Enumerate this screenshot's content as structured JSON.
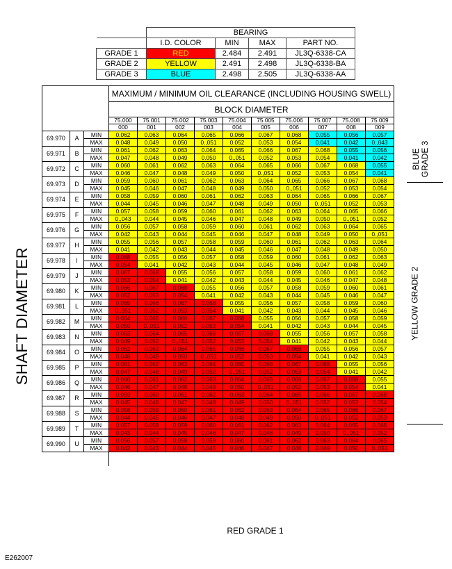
{
  "bearing": {
    "title": "BEARING",
    "headers": [
      "I.D. COLOR",
      "MIN",
      "MAX",
      "PART NO."
    ],
    "rows": [
      {
        "grade": "GRADE 1",
        "color_label": "RED",
        "color": "#ff0000",
        "label_color": "#ffe800",
        "min": "2.484",
        "max": "2.491",
        "part": "JL3Q-6338-CA"
      },
      {
        "grade": "GRADE 2",
        "color_label": "YELLOW",
        "color": "#ffff00",
        "label_color": "#000000",
        "min": "2.491",
        "max": "2.498",
        "part": "JL3Q-6338-BA"
      },
      {
        "grade": "GRADE 3",
        "color_label": "BLUE",
        "color": "#00ffff",
        "label_color": "#000000",
        "min": "2.498",
        "max": "2.505",
        "part": "JL3Q-6338-AA"
      }
    ]
  },
  "clearance": {
    "title": "MAXIMUM / MINIMUM OIL CLEARANCE (INCLUDING HOUSING SWELL)",
    "block_label": "BLOCK DIAMETER",
    "block_diameters": [
      "75.000",
      "75.001",
      "75.002",
      "75.003",
      "75.004",
      "75.005",
      "75.006",
      "75.007",
      "75.008",
      "75.009"
    ],
    "block_codes": [
      "000",
      "001",
      "002",
      "003",
      "004",
      "005",
      "006",
      "007",
      "008",
      "009"
    ],
    "shaft_label": "SHAFT DIAMETER",
    "min_label": "MIN",
    "max_label": "MAX",
    "grade3_label": [
      "BLUE",
      "GRADE 3"
    ],
    "grade2_label": "YELLOW GRADE 2",
    "grade1_label": "RED GRADE 1",
    "shaft_rows": [
      {
        "diameter": "69.970",
        "letter": "A",
        "min": [
          "0.062",
          "0.063",
          "0.064",
          "0.065",
          "0.066",
          "0.067",
          "0.068",
          "0.055",
          "0.056",
          "0.057"
        ],
        "max": [
          "0.048",
          "0.049",
          "0.050",
          "0.,051",
          "0.052",
          "0.053",
          "0.054",
          "0.041",
          "0.042",
          "0.,043"
        ]
      },
      {
        "diameter": "69.971",
        "letter": "B",
        "min": [
          "0.061",
          "0.062",
          "0.063",
          "0.064",
          "0.065",
          "0.066",
          "0.067",
          "0.068",
          "0.055",
          "0.056"
        ],
        "max": [
          "0.047",
          "0.048",
          "0.049",
          "0.050",
          "0.,051",
          "0.052",
          "0.053",
          "0.054",
          "0.041",
          "0.042"
        ]
      },
      {
        "diameter": "69.972",
        "letter": "C",
        "min": [
          "0.060",
          "0.061",
          "0.062",
          "0.063",
          "0.064",
          "0.065",
          "0.066",
          "0.067",
          "0.068",
          "0.055"
        ],
        "max": [
          "0.046",
          "0.047",
          "0.048",
          "0.049",
          "0.050",
          "0.,051",
          "0.052",
          "0.053",
          "0.054",
          "0.041"
        ]
      },
      {
        "diameter": "69.973",
        "letter": "D",
        "min": [
          "0.059",
          "0.060",
          "0.061",
          "0.062",
          "0.063",
          "0.064",
          "0.065",
          "0.066",
          "0.067",
          "0.068"
        ],
        "max": [
          "0.045",
          "0.046",
          "0.047",
          "0.048",
          "0.049",
          "0.050",
          "0.,051",
          "0.052",
          "0.053",
          "0.054"
        ]
      },
      {
        "diameter": "69.974",
        "letter": "E",
        "min": [
          "0.058",
          "0.059",
          "0.060",
          "0.061",
          "0.062",
          "0.063",
          "0.064",
          "0.065",
          "0.066",
          "0.067"
        ],
        "max": [
          "0.044",
          "0.045",
          "0.046",
          "0.047",
          "0.048",
          "0.049",
          "0.050",
          "0.,051",
          "0.052",
          "0.053"
        ]
      },
      {
        "diameter": "69.975",
        "letter": "F",
        "min": [
          "0.057",
          "0.058",
          "0.059",
          "0.060",
          "0.061",
          "0.062",
          "0.063",
          "0.064",
          "0.065",
          "0.066"
        ],
        "max": [
          "0.,043",
          "0.044",
          "0.045",
          "0.046",
          "0.047",
          "0.048",
          "0.049",
          "0.050",
          "0.,051",
          "0.052"
        ]
      },
      {
        "diameter": "69.976",
        "letter": "G",
        "min": [
          "0.056",
          "0.057",
          "0.058",
          "0.059",
          "0.060",
          "0.061",
          "0.062",
          "0.063",
          "0.064",
          "0.065"
        ],
        "max": [
          "0.042",
          "0.043",
          "0.044",
          "0.045",
          "0.046",
          "0.047",
          "0.048",
          "0.049",
          "0.050",
          "0.,051"
        ]
      },
      {
        "diameter": "69.977",
        "letter": "H",
        "min": [
          "0.055",
          "0.056",
          "0.057",
          "0.058",
          "0.059",
          "0.060",
          "0.061",
          "0.062",
          "0.063",
          "0.064"
        ],
        "max": [
          "0.041",
          "0.042",
          "0.043",
          "0.044",
          "0.045",
          "0.046",
          "0.047",
          "0.048",
          "0.049",
          "0.050"
        ]
      },
      {
        "diameter": "69.978",
        "letter": "I",
        "min": [
          "0.068",
          "0.055",
          "0.056",
          "0.057",
          "0.058",
          "0.059",
          "0.060",
          "0.061",
          "0.062",
          "0.063"
        ],
        "max": [
          "0.054",
          "0.041",
          "0.042",
          "0.043",
          "0.044",
          "0.045",
          "0.046",
          "0.047",
          "0.048",
          "0.049"
        ]
      },
      {
        "diameter": "69.979",
        "letter": "J",
        "min": [
          "0.067",
          "0.068",
          "0.055",
          "0.056",
          "0.057",
          "0.058",
          "0.059",
          "0.060",
          "0.061",
          "0.062"
        ],
        "max": [
          "0.053",
          "0.054",
          "0.041",
          "0.042",
          "0.043",
          "0.044",
          "0.045",
          "0.046",
          "0.047",
          "0.048"
        ]
      },
      {
        "diameter": "69.980",
        "letter": "K",
        "min": [
          "0.066",
          "0.067",
          "0.068",
          "0.055",
          "0.056",
          "0.057",
          "0.058",
          "0.059",
          "0.060",
          "0.061"
        ],
        "max": [
          "0.052",
          "0.053",
          "0.054",
          "0.041",
          "0.042",
          "0.043",
          "0.044",
          "0.045",
          "0.046",
          "0.047"
        ]
      },
      {
        "diameter": "69.981",
        "letter": "L",
        "min": [
          "0.065",
          "0.066",
          "0.067",
          "0.068",
          "0.055",
          "0.056",
          "0.057",
          "0.058",
          "0.059",
          "0.060"
        ],
        "max": [
          "0.,051",
          "0.052",
          "0.053",
          "0.054",
          "0.041",
          "0.042",
          "0.043",
          "0.044",
          "0.045",
          "0.046"
        ]
      },
      {
        "diameter": "69.982",
        "letter": "M",
        "min": [
          "0.064",
          "0.065",
          "0.066",
          "0.067",
          "0.068",
          "0.055",
          "0.056",
          "0.057",
          "0.058",
          "0.059"
        ],
        "max": [
          "0.050",
          "0.,051",
          "0.052",
          "0.053",
          "0.054",
          "0.041",
          "0.042",
          "0.043",
          "0.044",
          "0.045"
        ]
      },
      {
        "diameter": "69.983",
        "letter": "N",
        "min": [
          "0.063",
          "0.064",
          "0.065",
          "0.066",
          "0.067",
          "0.068",
          "0.055",
          "0.056",
          "0.057",
          "0.058"
        ],
        "max": [
          "0.049",
          "0.050",
          "0.,051",
          "0.052",
          "0.053",
          "0.054",
          "0.041",
          "0.042",
          "0.043",
          "0.044"
        ]
      },
      {
        "diameter": "69.984",
        "letter": "O",
        "min": [
          "0.062",
          "0.063",
          "0.064",
          "0.065",
          "0.066",
          "0.067",
          "0.068",
          "0.055",
          "0.056",
          "0.057"
        ],
        "max": [
          "0.048",
          "0.049",
          "0.050",
          "0.,051",
          "0.052",
          "0.053",
          "0.054",
          "0.041",
          "0.042",
          "0.043"
        ]
      },
      {
        "diameter": "69.985",
        "letter": "P",
        "min": [
          "0.061",
          "0.062",
          "0.063",
          "0.064",
          "0.065",
          "0.066",
          "0.067",
          "0.068",
          "0.055",
          "0.056"
        ],
        "max": [
          "0.047",
          "0.048",
          "0.049",
          "0.050",
          "0.,051",
          "0.052",
          "0.053",
          "0.054",
          "0.041",
          "0.042"
        ]
      },
      {
        "diameter": "69.986",
        "letter": "Q",
        "min": [
          "0.060",
          "0.061",
          "0.062",
          "0.063",
          "0.064",
          "0.065",
          "0.066",
          "0.067",
          "0.068",
          "0.055"
        ],
        "max": [
          "0.046",
          "0.047",
          "0.048",
          "0.049",
          "0.050",
          "0.,051",
          "0.052",
          "0.053",
          "0.054",
          "0.041"
        ]
      },
      {
        "diameter": "69.987",
        "letter": "R",
        "min": [
          "0.059",
          "0.060",
          "0.061",
          "0.062",
          "0.063",
          "0.064",
          "0.065",
          "0.066",
          "0.067",
          "0.068"
        ],
        "max": [
          "0.045",
          "0.046",
          "0.047",
          "0.048",
          "0.049",
          "0.050",
          "0.,051",
          "0.052",
          "0.053",
          "0.054"
        ]
      },
      {
        "diameter": "69.988",
        "letter": "S",
        "min": [
          "0.058",
          "0.059",
          "0.060",
          "0.061",
          "0.062",
          "0.063",
          "0.064",
          "0.065",
          "0.066",
          "0.067"
        ],
        "max": [
          "0.044",
          "0.045",
          "0.046",
          "0.047",
          "0.048",
          "0.049",
          "0.050",
          "0.,051",
          "0.052",
          "0.053"
        ]
      },
      {
        "diameter": "69.989",
        "letter": "T",
        "min": [
          "0.057",
          "0.058",
          "0.059",
          "0.060",
          "0.061",
          "0.062",
          "0.063",
          "0.064",
          "0.065",
          "0.066"
        ],
        "max": [
          "0.043",
          "0.044",
          "0.045",
          "0.046",
          "0.047",
          "0.048",
          "0.049",
          "0.050",
          "0.,051",
          "0.052"
        ]
      },
      {
        "diameter": "69.990",
        "letter": "U",
        "min": [
          "0.056",
          "0.057",
          "0.058",
          "0.059",
          "0.060",
          "0.061",
          "0.062",
          "0.063",
          "0.064",
          "0.065"
        ],
        "max": [
          "0.042",
          "0.043",
          "0.044",
          "0.045",
          "0.046",
          "0.047",
          "0.048",
          "0.049",
          "0.050",
          "0.,051"
        ]
      }
    ]
  },
  "colors": {
    "red": "#ff0000",
    "yellow": "#ffff00",
    "cyan": "#00ffff"
  },
  "figure_code": "E262007"
}
